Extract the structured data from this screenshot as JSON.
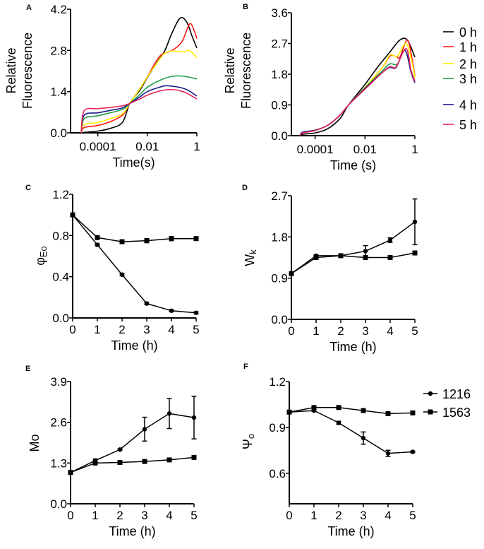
{
  "chart_data": [
    {
      "id": "A",
      "panel_label": "A",
      "type": "line",
      "xlabel": "Time(s)",
      "ylabel_lines": [
        "Relative",
        "Fluorescence"
      ],
      "xscale": "log",
      "xlim_log10": [
        -5.1,
        0
      ],
      "xticks": [
        {
          "v": -4,
          "label": "0.0001"
        },
        {
          "v": -2,
          "label": "0.01"
        },
        {
          "v": 0,
          "label": "1"
        }
      ],
      "ylim": [
        0,
        4.2
      ],
      "yticks": [
        "0.0",
        "1.4",
        "2.8",
        "4.2"
      ],
      "ytick_values": [
        0,
        1.4,
        2.8,
        4.2
      ],
      "series": [
        {
          "name": "0 h",
          "color": "#000000",
          "x": [
            -4.67,
            -4.5,
            -4,
            -3.5,
            -3,
            -2.71,
            -2.3,
            -2,
            -1.6,
            -1.29,
            -1,
            -0.67,
            -0.4,
            -0.2,
            0
          ],
          "y": [
            0,
            0.02,
            0.06,
            0.15,
            0.36,
            1.0,
            1.45,
            1.88,
            2.4,
            2.8,
            3.4,
            3.9,
            3.75,
            3.3,
            2.88
          ]
        },
        {
          "name": "1 h",
          "color": "#ff1a1a",
          "x": [
            -4.67,
            -4.55,
            -4,
            -3.5,
            -3,
            -2.71,
            -2.3,
            -2,
            -1.5,
            -1,
            -0.6,
            -0.29,
            -0.1,
            0
          ],
          "y": [
            0,
            0.18,
            0.25,
            0.38,
            0.6,
            1.0,
            1.5,
            1.9,
            2.6,
            2.8,
            3.1,
            3.7,
            3.45,
            3.2
          ]
        },
        {
          "name": "2 h",
          "color": "#ffee00",
          "x": [
            -4.67,
            -4.55,
            -4,
            -3.5,
            -3,
            -2.71,
            -2.3,
            -2,
            -1.5,
            -1.3,
            -1,
            -0.5,
            -0.3,
            0
          ],
          "y": [
            0,
            0.28,
            0.35,
            0.48,
            0.65,
            1.0,
            1.5,
            1.9,
            2.5,
            2.7,
            2.78,
            2.75,
            2.8,
            2.55
          ]
        },
        {
          "name": "3 h",
          "color": "#1e9e4a",
          "x": [
            -4.67,
            -4.55,
            -4,
            -3.5,
            -3,
            -2.71,
            -2.3,
            -2,
            -1.5,
            -1,
            -0.5,
            0
          ],
          "y": [
            0,
            0.48,
            0.58,
            0.68,
            0.8,
            1.0,
            1.3,
            1.55,
            1.78,
            1.92,
            1.92,
            1.83
          ]
        },
        {
          "name": "4 h",
          "color": "#1a1a8c",
          "x": [
            -4.67,
            -4.55,
            -4,
            -3.5,
            -3,
            -2.71,
            -2.3,
            -2,
            -1.5,
            -1.2,
            -0.5,
            0
          ],
          "y": [
            0,
            0.6,
            0.68,
            0.76,
            0.85,
            1.0,
            1.22,
            1.4,
            1.55,
            1.6,
            1.5,
            1.25
          ]
        },
        {
          "name": "5 h",
          "color": "#e8245a",
          "x": [
            -4.67,
            -4.55,
            -4,
            -3.5,
            -3,
            -2.71,
            -2.3,
            -2,
            -1.5,
            -1,
            -0.5,
            0
          ],
          "y": [
            0,
            0.75,
            0.82,
            0.86,
            0.92,
            1.0,
            1.15,
            1.28,
            1.42,
            1.47,
            1.38,
            1.15
          ]
        }
      ]
    },
    {
      "id": "B",
      "panel_label": "B",
      "type": "line",
      "xlabel": "Time (s)",
      "ylabel_lines": [
        "Relative",
        "Fluorescence"
      ],
      "xscale": "log",
      "xlim_log10": [
        -4.95,
        0
      ],
      "xticks": [
        {
          "v": -4,
          "label": "0.0001"
        },
        {
          "v": -2,
          "label": "0.01"
        },
        {
          "v": 0,
          "label": "1"
        }
      ],
      "ylim": [
        0,
        3.6
      ],
      "yticks": [
        "0.0",
        "0.9",
        "1.8",
        "2.7",
        "3.6"
      ],
      "ytick_values": [
        0,
        0.9,
        1.8,
        2.7,
        3.6
      ],
      "legend": {
        "position": "right",
        "entries": [
          "0 h",
          "1 h",
          "2 h",
          "3 h",
          "4 h",
          "5 h"
        ]
      },
      "series": [
        {
          "name": "0 h",
          "color": "#000000",
          "x": [
            -4.6,
            -4.5,
            -4,
            -3.5,
            -3,
            -2.66,
            -2,
            -1.5,
            -1,
            -0.6,
            -0.3,
            0
          ],
          "y": [
            0,
            0.04,
            0.08,
            0.2,
            0.5,
            0.9,
            1.5,
            2.0,
            2.45,
            2.8,
            2.8,
            2.3
          ]
        },
        {
          "name": "1 h",
          "color": "#ff1a1a",
          "x": [
            -4.6,
            -4.5,
            -4,
            -3.5,
            -3,
            -2.66,
            -2,
            -1.3,
            -1,
            -0.75,
            -0.6,
            -0.3,
            -0.1,
            0
          ],
          "y": [
            0,
            0.08,
            0.15,
            0.3,
            0.6,
            0.9,
            1.4,
            2.0,
            2.33,
            2.32,
            2.3,
            2.8,
            2.2,
            1.75
          ]
        },
        {
          "name": "2 h",
          "color": "#ffee00",
          "x": [
            -4.6,
            -4.5,
            -4,
            -3.5,
            -3,
            -2.66,
            -2,
            -1.3,
            -1,
            -0.7,
            -0.35,
            -0.1,
            0
          ],
          "y": [
            0,
            0.1,
            0.16,
            0.3,
            0.6,
            0.9,
            1.42,
            2.0,
            2.36,
            2.33,
            2.7,
            2.1,
            1.7
          ]
        },
        {
          "name": "3 h",
          "color": "#1e9e4a",
          "x": [
            -4.6,
            -4.5,
            -4,
            -3.5,
            -3,
            -2.66,
            -2,
            -1.3,
            -1,
            -0.7,
            -0.4,
            -0.15,
            0
          ],
          "y": [
            0,
            0.1,
            0.16,
            0.3,
            0.6,
            0.9,
            1.4,
            1.9,
            2.1,
            2.1,
            2.5,
            1.9,
            1.6
          ]
        },
        {
          "name": "4 h",
          "color": "#1a1a8c",
          "x": [
            -4.6,
            -4.5,
            -4,
            -3.5,
            -3,
            -2.66,
            -2,
            -1.3,
            -1,
            -0.75,
            -0.4,
            -0.15,
            0
          ],
          "y": [
            0,
            0.1,
            0.16,
            0.3,
            0.6,
            0.9,
            1.38,
            1.85,
            2.0,
            2.0,
            2.5,
            1.85,
            1.55
          ]
        },
        {
          "name": "5 h",
          "color": "#e8245a",
          "x": [
            -4.6,
            -4.5,
            -4,
            -3.5,
            -3,
            -2.66,
            -2,
            -1.3,
            -1,
            -0.75,
            -0.35,
            -0.15,
            0
          ],
          "y": [
            0,
            0.08,
            0.15,
            0.3,
            0.6,
            0.9,
            1.36,
            1.85,
            2.02,
            2.02,
            2.55,
            1.9,
            1.6
          ]
        }
      ]
    },
    {
      "id": "C",
      "panel_label": "C",
      "type": "line",
      "xlabel": "Time (h)",
      "ylabel_main": "φ",
      "ylabel_sub": "Eo",
      "xlim": [
        0,
        5
      ],
      "xticks": [
        "0",
        "1",
        "2",
        "3",
        "4",
        "5"
      ],
      "ylim": [
        0,
        1.2
      ],
      "yticks": [
        "0.0",
        "0.4",
        "0.8",
        "1.2"
      ],
      "ytick_values": [
        0,
        0.4,
        0.8,
        1.2
      ],
      "series": [
        {
          "name": "1216",
          "marker": "circle",
          "x": [
            0,
            1,
            2,
            3,
            4,
            5
          ],
          "y": [
            1.0,
            0.71,
            0.42,
            0.14,
            0.07,
            0.05
          ],
          "err": [
            0,
            0.01,
            0.01,
            0.01,
            0.01,
            0.01
          ]
        },
        {
          "name": "1563",
          "marker": "square",
          "x": [
            0,
            1,
            2,
            3,
            4,
            5
          ],
          "y": [
            1.0,
            0.78,
            0.74,
            0.75,
            0.77,
            0.77
          ],
          "err": [
            0,
            0.01,
            0.01,
            0.02,
            0.02,
            0.01
          ]
        }
      ]
    },
    {
      "id": "D",
      "panel_label": "D",
      "type": "line",
      "xlabel": "Time (h)",
      "ylabel_main": "W",
      "ylabel_sub": "k",
      "xlim": [
        0,
        5
      ],
      "xticks": [
        "0",
        "1",
        "2",
        "3",
        "4",
        "5"
      ],
      "ylim": [
        0,
        2.7
      ],
      "yticks": [
        "0.0",
        "0.9",
        "1.8",
        "2.7"
      ],
      "ytick_values": [
        0,
        0.9,
        1.8,
        2.7
      ],
      "series": [
        {
          "name": "1216",
          "marker": "circle",
          "x": [
            0,
            1,
            2,
            3,
            4,
            5
          ],
          "y": [
            1.0,
            1.39,
            1.39,
            1.49,
            1.73,
            2.13
          ],
          "err": [
            0,
            0.02,
            0.04,
            0.12,
            0.05,
            0.5
          ]
        },
        {
          "name": "1563",
          "marker": "square",
          "x": [
            0,
            1,
            2,
            3,
            4,
            5
          ],
          "y": [
            1.0,
            1.35,
            1.39,
            1.35,
            1.35,
            1.45
          ],
          "err": [
            0,
            0.02,
            0.02,
            0.01,
            0.01,
            0.01
          ]
        }
      ]
    },
    {
      "id": "E",
      "panel_label": "E",
      "type": "line",
      "xlabel": "Time (h)",
      "ylabel_main": "Mo",
      "ylabel_sub": "",
      "xlim": [
        0,
        5
      ],
      "xticks": [
        "0",
        "1",
        "2",
        "3",
        "4",
        "5"
      ],
      "ylim": [
        0,
        3.9
      ],
      "yticks": [
        "0.0",
        "1.3",
        "2.6",
        "3.9"
      ],
      "ytick_values": [
        0,
        1.3,
        2.6,
        3.9
      ],
      "series": [
        {
          "name": "1216",
          "marker": "circle",
          "x": [
            0,
            1,
            2,
            3,
            4,
            5
          ],
          "y": [
            1.0,
            1.38,
            1.73,
            2.38,
            2.88,
            2.75
          ],
          "err": [
            0,
            0.05,
            0.02,
            0.38,
            0.48,
            0.68
          ]
        },
        {
          "name": "1563",
          "marker": "square",
          "x": [
            0,
            1,
            2,
            3,
            4,
            5
          ],
          "y": [
            1.0,
            1.3,
            1.32,
            1.35,
            1.4,
            1.48
          ],
          "err": [
            0,
            0.02,
            0.01,
            0.01,
            0.01,
            0.01
          ]
        }
      ]
    },
    {
      "id": "F",
      "panel_label": "F",
      "type": "line",
      "xlabel": "Time (h)",
      "ylabel_main": "Ψ",
      "ylabel_sub": "o",
      "xlim": [
        0,
        5
      ],
      "xticks": [
        "0",
        "1",
        "2",
        "3",
        "4",
        "5"
      ],
      "ylim": [
        0.4,
        1.2
      ],
      "yticks": [
        "0.6",
        "0.9",
        "1.2"
      ],
      "ytick_values": [
        0.6,
        0.9,
        1.2
      ],
      "legend": {
        "position": "top-right",
        "entries": [
          "1216",
          "1563"
        ]
      },
      "series": [
        {
          "name": "1216",
          "marker": "circle",
          "x": [
            0,
            1,
            2,
            3,
            4,
            5
          ],
          "y": [
            1.0,
            1.01,
            0.93,
            0.83,
            0.73,
            0.74
          ],
          "err": [
            0,
            0.005,
            0.01,
            0.04,
            0.02,
            0.005
          ]
        },
        {
          "name": "1563",
          "marker": "square",
          "x": [
            0,
            1,
            2,
            3,
            4,
            5
          ],
          "y": [
            1.0,
            1.03,
            1.03,
            1.01,
            0.99,
            0.995
          ],
          "err": [
            0.005,
            0.005,
            0.005,
            0.005,
            0.005,
            0.005
          ]
        }
      ]
    }
  ]
}
